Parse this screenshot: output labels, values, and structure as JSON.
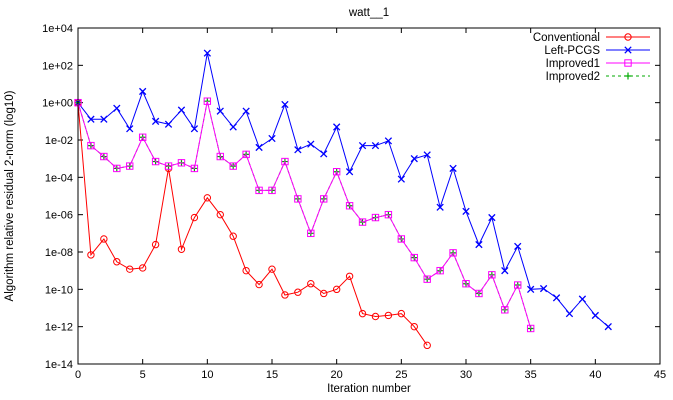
{
  "chart_data": {
    "type": "line",
    "title": "watt__1",
    "xlabel": "Iteration number",
    "ylabel": "Algorithm relative residual 2-norm (log10)",
    "xlim": [
      0,
      45
    ],
    "ylim": [
      -14,
      4
    ],
    "yscale": "log",
    "grid": false,
    "legend_position": "top-right",
    "x_ticks": [
      0,
      5,
      10,
      15,
      20,
      25,
      30,
      35,
      40,
      45
    ],
    "y_ticks": [
      "1e+04",
      "1e+02",
      "1e+00",
      "1e-02",
      "1e-04",
      "1e-06",
      "1e-08",
      "1e-10",
      "1e-12",
      "1e-14"
    ],
    "series": [
      {
        "name": "Conventional",
        "color": "#ff0000",
        "marker": "circle",
        "dash": "solid",
        "x": [
          0,
          1,
          2,
          3,
          4,
          5,
          6,
          7,
          8,
          9,
          10,
          11,
          12,
          13,
          14,
          15,
          16,
          17,
          18,
          19,
          20,
          21,
          22,
          23,
          24,
          25,
          26,
          27
        ],
        "y": [
          1,
          7e-09,
          5e-08,
          3e-09,
          1.2e-09,
          1.4e-09,
          2.5e-08,
          0.0003,
          1.4e-08,
          7e-07,
          8e-06,
          1e-06,
          7e-08,
          1e-09,
          1.8e-10,
          1.2e-09,
          5e-11,
          7e-11,
          2e-10,
          6e-11,
          1e-10,
          5e-10,
          5e-12,
          3.5e-12,
          4e-12,
          5e-12,
          1e-12,
          1e-13
        ]
      },
      {
        "name": "Left-PCGS",
        "color": "#0000ff",
        "marker": "x",
        "dash": "solid",
        "x": [
          0,
          1,
          2,
          3,
          4,
          5,
          6,
          7,
          8,
          9,
          10,
          11,
          12,
          13,
          14,
          15,
          16,
          17,
          18,
          19,
          20,
          21,
          22,
          23,
          24,
          25,
          26,
          27,
          28,
          29,
          30,
          31,
          32,
          33,
          34,
          35,
          36,
          37,
          38,
          39,
          40,
          41
        ],
        "y": [
          1,
          0.13,
          0.13,
          0.5,
          0.04,
          4,
          0.1,
          0.07,
          0.4,
          0.04,
          450,
          0.35,
          0.05,
          0.35,
          0.004,
          0.012,
          0.8,
          0.003,
          0.006,
          0.0018,
          0.05,
          0.0002,
          0.005,
          0.005,
          0.009,
          8e-05,
          0.001,
          0.0016,
          2.5e-06,
          0.0003,
          1.5e-06,
          2.5e-08,
          7e-07,
          1e-09,
          2e-08,
          1e-10,
          1.1e-10,
          3.5e-11,
          5e-12,
          3e-11,
          4e-12,
          1e-12
        ]
      },
      {
        "name": "Improved1",
        "color": "#ff00ff",
        "marker": "square",
        "dash": "solid",
        "x": [
          0,
          1,
          2,
          3,
          4,
          5,
          6,
          7,
          8,
          9,
          10,
          11,
          12,
          13,
          14,
          15,
          16,
          17,
          18,
          19,
          20,
          21,
          22,
          23,
          24,
          25,
          26,
          27,
          28,
          29,
          30,
          31,
          32,
          33,
          34,
          35
        ],
        "y": [
          1,
          0.005,
          0.0013,
          0.0003,
          0.0004,
          0.014,
          0.0007,
          0.0004,
          0.0006,
          0.0003,
          1.2,
          0.0013,
          0.0004,
          0.0017,
          2e-05,
          2e-05,
          0.0007,
          7e-06,
          1e-07,
          7e-06,
          0.0002,
          3e-06,
          4e-07,
          7e-07,
          1e-06,
          5e-08,
          5e-09,
          3.5e-10,
          1e-09,
          9e-09,
          2e-10,
          6e-11,
          6e-10,
          8e-12,
          1.7e-10,
          8e-13
        ]
      },
      {
        "name": "Improved2",
        "color": "#00aa00",
        "marker": "plus",
        "dash": "dashed",
        "x": [
          0,
          1,
          2,
          3,
          4,
          5,
          6,
          7,
          8,
          9,
          10,
          11,
          12,
          13,
          14,
          15,
          16,
          17,
          18,
          19,
          20,
          21,
          22,
          23,
          24,
          25,
          26,
          27,
          28,
          29,
          30,
          31,
          32,
          33,
          34,
          35
        ],
        "y": [
          1,
          0.005,
          0.0013,
          0.0003,
          0.0004,
          0.014,
          0.0007,
          0.0004,
          0.0006,
          0.0003,
          1.2,
          0.0013,
          0.0004,
          0.0017,
          2e-05,
          2e-05,
          0.0007,
          7e-06,
          1e-07,
          7e-06,
          0.0002,
          3e-06,
          4e-07,
          7e-07,
          1e-06,
          5e-08,
          5e-09,
          3.5e-10,
          1e-09,
          9e-09,
          2e-10,
          6e-11,
          6e-10,
          8e-12,
          1.7e-10,
          8e-13
        ]
      }
    ]
  }
}
